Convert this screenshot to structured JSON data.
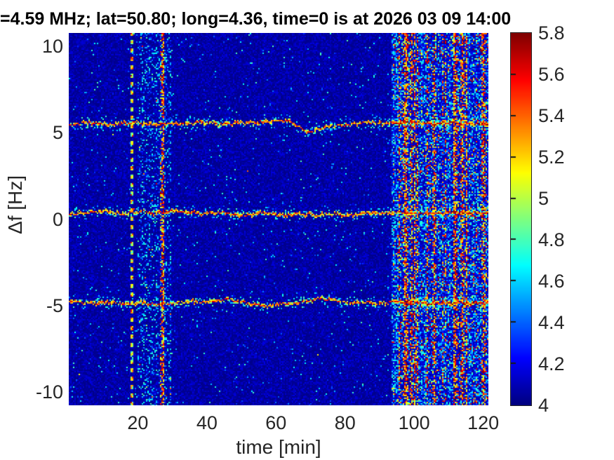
{
  "title": "=4.59 MHz;  lat=50.80; long=4.36, time=0 is at 2026 03 09 14:00",
  "chart_data": {
    "type": "heatmap",
    "subtype": "doppler-spectrogram",
    "title": "=4.59 MHz;  lat=50.80; long=4.36, time=0 is at 2026 03 09 14:00",
    "xlabel": "time [min]",
    "ylabel": "Δf [Hz]",
    "xlim": [
      0,
      121.5
    ],
    "ylim": [
      -10.75,
      10.75
    ],
    "xticks": [
      20,
      40,
      60,
      80,
      100,
      120
    ],
    "xtick_labels": [
      "20",
      "40",
      "60",
      "80",
      "100",
      "120"
    ],
    "yticks": [
      10,
      5,
      0,
      -5,
      -10
    ],
    "ytick_labels": [
      "10",
      "5",
      "0",
      "-5",
      "-10"
    ],
    "grid": false,
    "legend": "none",
    "colormap": "jet",
    "clim": [
      4,
      5.8
    ],
    "colorbar_ticks": [
      5.8,
      5.6,
      5.4,
      5.2,
      5,
      4.8,
      4.6,
      4.4,
      4.2,
      4
    ],
    "colorbar_tick_labels": [
      "5.8",
      "5.6",
      "5.4",
      "5.2",
      "5",
      "4.8",
      "4.6",
      "4.4",
      "4.2",
      "4"
    ],
    "background_level": 4.05,
    "traces": [
      {
        "name": "upper-doppler-trace",
        "approx_level_hz": 5.6,
        "points": [
          [
            0,
            5.48
          ],
          [
            3,
            5.56
          ],
          [
            6,
            5.62
          ],
          [
            9,
            5.56
          ],
          [
            12,
            5.5
          ],
          [
            15,
            5.54
          ],
          [
            18,
            5.62
          ],
          [
            20,
            5.6
          ],
          [
            23,
            5.5
          ],
          [
            26,
            5.52
          ],
          [
            29,
            5.56
          ],
          [
            32,
            5.52
          ],
          [
            35,
            5.6
          ],
          [
            38,
            5.64
          ],
          [
            41,
            5.58
          ],
          [
            44,
            5.52
          ],
          [
            47,
            5.56
          ],
          [
            50,
            5.6
          ],
          [
            53,
            5.62
          ],
          [
            56,
            5.66
          ],
          [
            59,
            5.7
          ],
          [
            62,
            5.72
          ],
          [
            64,
            5.66
          ],
          [
            66,
            5.45
          ],
          [
            68,
            5.18
          ],
          [
            69.5,
            5.07
          ],
          [
            71,
            5.12
          ],
          [
            73,
            5.28
          ],
          [
            75,
            5.42
          ],
          [
            77,
            5.48
          ],
          [
            79,
            5.42
          ],
          [
            81,
            5.5
          ],
          [
            84,
            5.58
          ],
          [
            87,
            5.62
          ],
          [
            90,
            5.6
          ],
          [
            93,
            5.56
          ],
          [
            96,
            5.6
          ],
          [
            99,
            5.64
          ],
          [
            102,
            5.58
          ],
          [
            105,
            5.52
          ],
          [
            108,
            5.58
          ],
          [
            111,
            5.62
          ],
          [
            114,
            5.54
          ],
          [
            117,
            5.5
          ],
          [
            121.5,
            5.56
          ]
        ]
      },
      {
        "name": "center-doppler-trace",
        "approx_level_hz": 0.4,
        "points": [
          [
            0,
            0.3
          ],
          [
            3,
            0.36
          ],
          [
            6,
            0.44
          ],
          [
            9,
            0.5
          ],
          [
            12,
            0.44
          ],
          [
            15,
            0.36
          ],
          [
            18,
            0.42
          ],
          [
            21,
            0.46
          ],
          [
            24,
            0.38
          ],
          [
            27,
            0.44
          ],
          [
            30,
            0.52
          ],
          [
            33,
            0.48
          ],
          [
            36,
            0.4
          ],
          [
            39,
            0.34
          ],
          [
            42,
            0.44
          ],
          [
            45,
            0.4
          ],
          [
            48,
            0.32
          ],
          [
            51,
            0.26
          ],
          [
            54,
            0.36
          ],
          [
            57,
            0.42
          ],
          [
            60,
            0.3
          ],
          [
            63,
            0.24
          ],
          [
            66,
            0.34
          ],
          [
            69,
            0.3
          ],
          [
            72,
            0.26
          ],
          [
            75,
            0.34
          ],
          [
            78,
            0.3
          ],
          [
            81,
            0.26
          ],
          [
            84,
            0.36
          ],
          [
            87,
            0.42
          ],
          [
            90,
            0.34
          ],
          [
            93,
            0.4
          ],
          [
            96,
            0.44
          ],
          [
            99,
            0.4
          ],
          [
            102,
            0.36
          ],
          [
            105,
            0.42
          ],
          [
            108,
            0.38
          ],
          [
            111,
            0.44
          ],
          [
            114,
            0.36
          ],
          [
            117,
            0.42
          ],
          [
            121.5,
            0.38
          ]
        ]
      },
      {
        "name": "lower-doppler-trace",
        "approx_level_hz": -4.8,
        "points": [
          [
            0,
            -4.68
          ],
          [
            3,
            -4.76
          ],
          [
            6,
            -4.84
          ],
          [
            9,
            -4.78
          ],
          [
            12,
            -4.72
          ],
          [
            15,
            -4.8
          ],
          [
            18,
            -4.86
          ],
          [
            21,
            -4.78
          ],
          [
            24,
            -4.84
          ],
          [
            27,
            -4.9
          ],
          [
            30,
            -4.82
          ],
          [
            33,
            -4.76
          ],
          [
            36,
            -4.7
          ],
          [
            39,
            -4.78
          ],
          [
            42,
            -4.72
          ],
          [
            44,
            -4.6
          ],
          [
            46,
            -4.56
          ],
          [
            48,
            -4.64
          ],
          [
            50,
            -4.74
          ],
          [
            52,
            -4.8
          ],
          [
            54,
            -4.86
          ],
          [
            56,
            -4.92
          ],
          [
            58,
            -5.02
          ],
          [
            60,
            -4.9
          ],
          [
            62,
            -4.82
          ],
          [
            64,
            -4.86
          ],
          [
            66,
            -4.8
          ],
          [
            68,
            -4.74
          ],
          [
            70,
            -4.68
          ],
          [
            72,
            -4.58
          ],
          [
            74,
            -4.54
          ],
          [
            76,
            -4.6
          ],
          [
            78,
            -4.68
          ],
          [
            80,
            -4.76
          ],
          [
            83,
            -4.8
          ],
          [
            86,
            -4.74
          ],
          [
            89,
            -4.84
          ],
          [
            92,
            -4.78
          ],
          [
            95,
            -4.74
          ],
          [
            98,
            -4.82
          ],
          [
            101,
            -4.78
          ],
          [
            104,
            -4.84
          ],
          [
            107,
            -4.78
          ],
          [
            110,
            -4.84
          ],
          [
            113,
            -4.78
          ],
          [
            116,
            -4.82
          ],
          [
            121.5,
            -4.78
          ]
        ]
      }
    ],
    "vertical_features": [
      {
        "t0": 18.05,
        "t1": 18.6,
        "kind": "dashed-line",
        "spk": 0.05,
        "hot": 0.0
      },
      {
        "t0": 19.8,
        "t1": 29.6,
        "kind": "band",
        "spk": 0.22,
        "hot": 0.012
      },
      {
        "t0": 26.4,
        "t1": 27.5,
        "kind": "band",
        "spk": 0.55,
        "hot": 0.4
      },
      {
        "t0": 93.5,
        "t1": 95.5,
        "kind": "band",
        "spk": 0.5,
        "hot": 0.05
      },
      {
        "t0": 95.5,
        "t1": 101.0,
        "kind": "band",
        "spk": 0.55,
        "hot": 0.3
      },
      {
        "t0": 101.0,
        "t1": 103.8,
        "kind": "band",
        "spk": 0.45,
        "hot": 0.06
      },
      {
        "t0": 103.8,
        "t1": 106.5,
        "kind": "band",
        "spk": 0.5,
        "hot": 0.25
      },
      {
        "t0": 106.5,
        "t1": 108.2,
        "kind": "band",
        "spk": 0.42,
        "hot": 0.06
      },
      {
        "t0": 108.2,
        "t1": 109.2,
        "kind": "band",
        "spk": 0.5,
        "hot": 0.16
      },
      {
        "t0": 109.2,
        "t1": 111.5,
        "kind": "band",
        "spk": 0.45,
        "hot": 0.07
      },
      {
        "t0": 111.5,
        "t1": 115.5,
        "kind": "band",
        "spk": 0.55,
        "hot": 0.32
      },
      {
        "t0": 115.5,
        "t1": 118.8,
        "kind": "band",
        "spk": 0.45,
        "hot": 0.09
      },
      {
        "t0": 118.8,
        "t1": 121.5,
        "kind": "band",
        "spk": 0.5,
        "hot": 0.22
      }
    ]
  },
  "colors": {
    "text": "#262626",
    "title": "#000000",
    "plot_background_low": "#0000a0"
  }
}
